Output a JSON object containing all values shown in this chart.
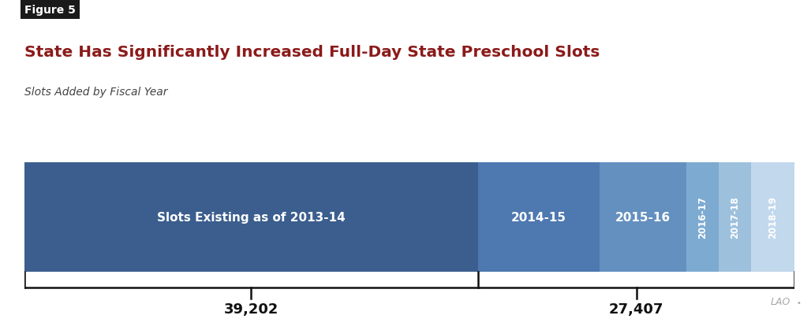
{
  "title": "State Has Significantly Increased Full-Day State Preschool Slots",
  "subtitle": "Slots Added by Fiscal Year",
  "figure_label": "Figure 5",
  "segments": [
    {
      "label": "Slots Existing as of 2013-14",
      "value": 39202,
      "color": "#3b5e8e",
      "text_horizontal": true,
      "fontsize": 11
    },
    {
      "label": "2014-15",
      "value": 10500,
      "color": "#4e78b0",
      "text_horizontal": true,
      "fontsize": 11
    },
    {
      "label": "2015-16",
      "value": 7500,
      "color": "#6490c0",
      "text_horizontal": true,
      "fontsize": 11
    },
    {
      "label": "2016-17",
      "value": 2800,
      "color": "#7daad0",
      "text_horizontal": false,
      "fontsize": 8.5
    },
    {
      "label": "2017-18",
      "value": 2800,
      "color": "#9dc0dc",
      "text_horizontal": false,
      "fontsize": 8.5
    },
    {
      "label": "2018-19",
      "value": 3800,
      "color": "#c2d8ec",
      "text_horizontal": false,
      "fontsize": 8.5
    }
  ],
  "bracket1_label": "39,202",
  "bracket2_label": "27,407",
  "title_color": "#8b1a1a",
  "subtitle_color": "#444444",
  "background_color": "#ffffff",
  "text_color_white": "#ffffff",
  "text_color_dark": "#111111",
  "figure_label_bg": "#1a1a1a",
  "figure_label_color": "#ffffff",
  "lao_text": "LAO",
  "lao_color": "#aaaaaa"
}
